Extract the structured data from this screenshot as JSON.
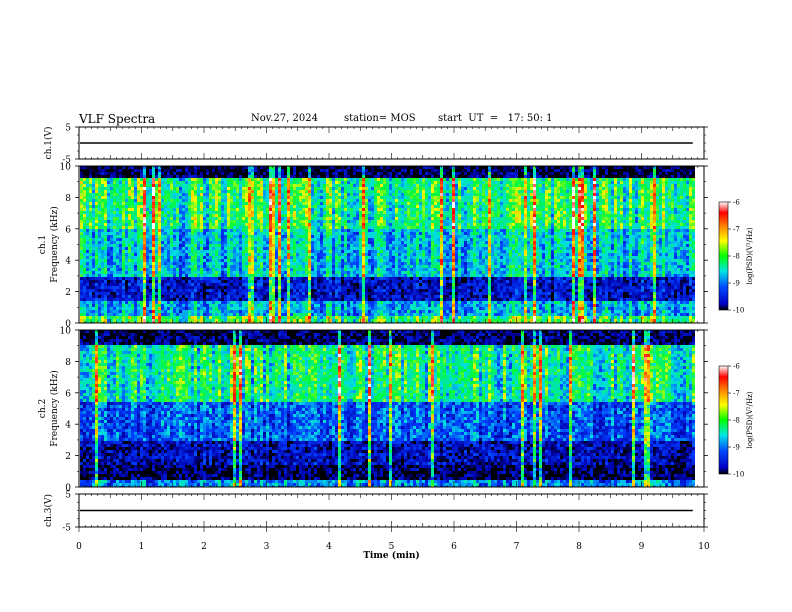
{
  "header": {
    "title": "VLF Spectra",
    "date": "Nov.27, 2024",
    "station": "station= MOS",
    "start": "start  UT  =   17: 50: 1"
  },
  "chart_data": {
    "type": "heatmap",
    "xlabel": "Time (min)",
    "xlim": [
      0,
      10
    ],
    "x_ticks": [
      "0",
      "1",
      "2",
      "3",
      "4",
      "5",
      "6",
      "7",
      "8",
      "9",
      "10"
    ],
    "data_end_min": 9.82,
    "panels": [
      {
        "name": "ch1-waveform",
        "ylabel": "ch.1(V)",
        "ylim": [
          -5,
          5
        ],
        "y_ticks": [
          "5",
          "-5"
        ],
        "trace_level": 0
      },
      {
        "name": "ch1-spectrogram",
        "ylabel_lines": [
          "ch.1",
          "Frequency (kHz)"
        ],
        "ylim": [
          0,
          10
        ],
        "y_ticks": [
          "0",
          "2",
          "4",
          "6",
          "8",
          "10"
        ],
        "colorbar": {
          "label": "log(PSD)(V²/Hz)",
          "range": [
            -10,
            -6
          ],
          "ticks": [
            "-6",
            "-7",
            "-8",
            "-9",
            "-10"
          ]
        }
      },
      {
        "name": "ch2-spectrogram",
        "ylabel_lines": [
          "ch.2",
          "Frequency (kHz)"
        ],
        "ylim": [
          0,
          10
        ],
        "y_ticks": [
          "0",
          "2",
          "4",
          "6",
          "8",
          "10"
        ],
        "colorbar": {
          "label": "log(PSD)(V²/Hz)",
          "range": [
            -10,
            -6
          ],
          "ticks": [
            "-6",
            "-7",
            "-8",
            "-9",
            "-10"
          ]
        }
      },
      {
        "name": "ch3-waveform",
        "ylabel": "ch.3(V)",
        "ylim": [
          -5,
          5
        ],
        "y_ticks": [
          "5",
          "-5"
        ],
        "trace_level": 0
      }
    ]
  }
}
